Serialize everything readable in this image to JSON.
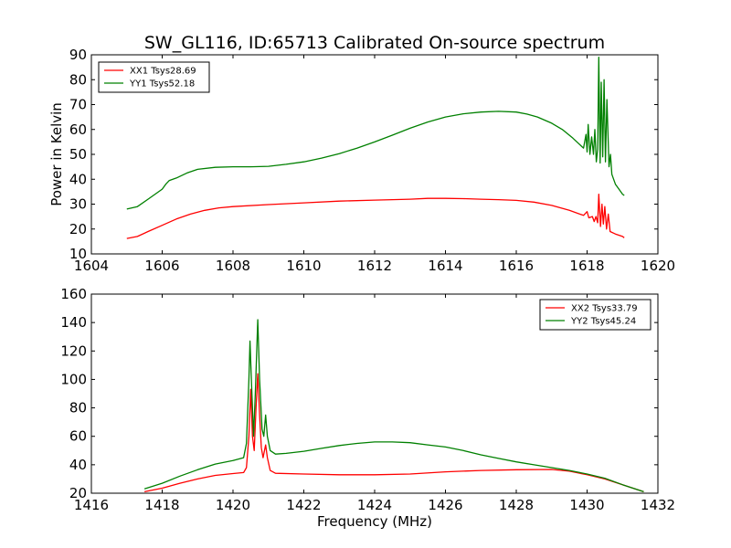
{
  "figure": {
    "title": "SW_GL116, ID:65713 Calibrated On-source spectrum",
    "xlabel": "Frequency (MHz)"
  },
  "chart_data": [
    {
      "type": "line",
      "title": "SW_GL116, ID:65713 Calibrated On-source spectrum",
      "xlabel": "",
      "ylabel": "Power in Kelvin",
      "xlim": [
        1604,
        1620
      ],
      "ylim": [
        10,
        90
      ],
      "xticks": [
        1604,
        1606,
        1608,
        1610,
        1612,
        1614,
        1616,
        1618,
        1620
      ],
      "yticks": [
        10,
        20,
        30,
        40,
        50,
        60,
        70,
        80,
        90
      ],
      "grid": false,
      "legend": "top-left",
      "series": [
        {
          "name": "XX1 Tsys28.69",
          "color": "#ff0000",
          "points": [
            [
              1605,
              16.2
            ],
            [
              1605.3,
              17
            ],
            [
              1605.6,
              19
            ],
            [
              1606,
              21.5
            ],
            [
              1606.4,
              24
            ],
            [
              1606.8,
              26
            ],
            [
              1607.2,
              27.5
            ],
            [
              1607.6,
              28.5
            ],
            [
              1608,
              29
            ],
            [
              1609,
              29.8
            ],
            [
              1610,
              30.5
            ],
            [
              1611,
              31.2
            ],
            [
              1612,
              31.6
            ],
            [
              1613,
              32
            ],
            [
              1613.5,
              32.3
            ],
            [
              1614,
              32.3
            ],
            [
              1614.5,
              32.2
            ],
            [
              1615,
              32
            ],
            [
              1615.5,
              31.8
            ],
            [
              1616,
              31.5
            ],
            [
              1616.5,
              30.8
            ],
            [
              1617,
              29.5
            ],
            [
              1617.5,
              27.5
            ],
            [
              1617.9,
              25.5
            ],
            [
              1618.0,
              27
            ],
            [
              1618.05,
              24.5
            ],
            [
              1618.15,
              25
            ],
            [
              1618.2,
              23
            ],
            [
              1618.25,
              25
            ],
            [
              1618.3,
              22.5
            ],
            [
              1618.33,
              34
            ],
            [
              1618.38,
              21
            ],
            [
              1618.42,
              30
            ],
            [
              1618.46,
              22
            ],
            [
              1618.5,
              29
            ],
            [
              1618.55,
              20
            ],
            [
              1618.6,
              26
            ],
            [
              1618.65,
              19
            ],
            [
              1618.8,
              18
            ],
            [
              1619.0,
              17
            ],
            [
              1619.05,
              16.5
            ]
          ]
        },
        {
          "name": "YY1 Tsys52.18",
          "color": "#008000",
          "points": [
            [
              1605,
              28
            ],
            [
              1605.3,
              29
            ],
            [
              1605.6,
              32
            ],
            [
              1606,
              36
            ],
            [
              1606.1,
              38
            ],
            [
              1606.2,
              39.5
            ],
            [
              1606.4,
              40.5
            ],
            [
              1606.7,
              42.5
            ],
            [
              1607,
              44
            ],
            [
              1607.5,
              44.8
            ],
            [
              1608,
              45
            ],
            [
              1608.5,
              45
            ],
            [
              1609,
              45.2
            ],
            [
              1609.5,
              46
            ],
            [
              1610,
              47
            ],
            [
              1610.5,
              48.5
            ],
            [
              1611,
              50.3
            ],
            [
              1611.5,
              52.5
            ],
            [
              1612,
              55
            ],
            [
              1612.5,
              57.7
            ],
            [
              1613,
              60.5
            ],
            [
              1613.5,
              63
            ],
            [
              1614,
              65
            ],
            [
              1614.5,
              66.3
            ],
            [
              1615,
              67
            ],
            [
              1615.5,
              67.3
            ],
            [
              1616,
              67
            ],
            [
              1616.3,
              66.2
            ],
            [
              1616.6,
              65
            ],
            [
              1617,
              62.5
            ],
            [
              1617.3,
              60
            ],
            [
              1617.6,
              56.5
            ],
            [
              1617.9,
              52.5
            ],
            [
              1617.97,
              58
            ],
            [
              1618.0,
              51
            ],
            [
              1618.03,
              62
            ],
            [
              1618.08,
              50
            ],
            [
              1618.13,
              57
            ],
            [
              1618.18,
              50
            ],
            [
              1618.22,
              60
            ],
            [
              1618.26,
              47
            ],
            [
              1618.3,
              52
            ],
            [
              1618.33,
              89
            ],
            [
              1618.37,
              46.5
            ],
            [
              1618.4,
              79
            ],
            [
              1618.44,
              49
            ],
            [
              1618.48,
              80
            ],
            [
              1618.52,
              47
            ],
            [
              1618.56,
              72
            ],
            [
              1618.62,
              45
            ],
            [
              1618.66,
              50
            ],
            [
              1618.7,
              42
            ],
            [
              1618.8,
              38
            ],
            [
              1618.9,
              36
            ],
            [
              1619.0,
              34
            ],
            [
              1619.05,
              33.5
            ]
          ]
        }
      ]
    },
    {
      "type": "line",
      "title": "",
      "xlabel": "Frequency (MHz)",
      "ylabel": "",
      "xlim": [
        1416,
        1432
      ],
      "ylim": [
        20,
        160
      ],
      "xticks": [
        1416,
        1418,
        1420,
        1422,
        1424,
        1426,
        1428,
        1430,
        1432
      ],
      "yticks": [
        20,
        40,
        60,
        80,
        100,
        120,
        140,
        160
      ],
      "grid": false,
      "legend": "top-right",
      "series": [
        {
          "name": "XX2 Tsys33.79",
          "color": "#ff0000",
          "points": [
            [
              1417.5,
              21
            ],
            [
              1418,
              23.5
            ],
            [
              1418.5,
              27
            ],
            [
              1419,
              30
            ],
            [
              1419.5,
              32.5
            ],
            [
              1420,
              33.8
            ],
            [
              1420.3,
              34.5
            ],
            [
              1420.38,
              38
            ],
            [
              1420.45,
              60
            ],
            [
              1420.5,
              93
            ],
            [
              1420.55,
              60
            ],
            [
              1420.6,
              50
            ],
            [
              1420.65,
              80
            ],
            [
              1420.7,
              104
            ],
            [
              1420.75,
              75
            ],
            [
              1420.8,
              52
            ],
            [
              1420.85,
              45
            ],
            [
              1420.92,
              54
            ],
            [
              1420.97,
              45
            ],
            [
              1421.05,
              36
            ],
            [
              1421.2,
              34
            ],
            [
              1422,
              33.5
            ],
            [
              1423,
              33
            ],
            [
              1424,
              33
            ],
            [
              1425,
              33.5
            ],
            [
              1426,
              35
            ],
            [
              1427,
              36
            ],
            [
              1428,
              36.5
            ],
            [
              1429,
              36.7
            ],
            [
              1429.5,
              35.5
            ],
            [
              1430,
              33
            ],
            [
              1430.5,
              30
            ],
            [
              1431,
              26
            ],
            [
              1431.6,
              21
            ]
          ]
        },
        {
          "name": "YY2 Tsys45.24",
          "color": "#008000",
          "points": [
            [
              1417.5,
              23
            ],
            [
              1418,
              27
            ],
            [
              1418.5,
              32
            ],
            [
              1419,
              36.5
            ],
            [
              1419.5,
              40.5
            ],
            [
              1420,
              43
            ],
            [
              1420.3,
              45
            ],
            [
              1420.38,
              55
            ],
            [
              1420.45,
              100
            ],
            [
              1420.48,
              127
            ],
            [
              1420.52,
              100
            ],
            [
              1420.58,
              60
            ],
            [
              1420.63,
              90
            ],
            [
              1420.7,
              142
            ],
            [
              1420.75,
              100
            ],
            [
              1420.82,
              65
            ],
            [
              1420.87,
              60
            ],
            [
              1420.92,
              75
            ],
            [
              1420.97,
              60
            ],
            [
              1421.05,
              50
            ],
            [
              1421.2,
              47.5
            ],
            [
              1421.5,
              48
            ],
            [
              1422,
              49.5
            ],
            [
              1422.5,
              51.5
            ],
            [
              1423,
              53.5
            ],
            [
              1423.5,
              55
            ],
            [
              1424,
              56
            ],
            [
              1424.5,
              56
            ],
            [
              1425,
              55.5
            ],
            [
              1425.5,
              54
            ],
            [
              1426,
              52.5
            ],
            [
              1426.5,
              50
            ],
            [
              1427,
              47
            ],
            [
              1427.5,
              44.5
            ],
            [
              1428,
              42
            ],
            [
              1428.5,
              40
            ],
            [
              1429,
              38
            ],
            [
              1429.5,
              36
            ],
            [
              1430,
              33.5
            ],
            [
              1430.5,
              30.5
            ],
            [
              1431,
              26
            ],
            [
              1431.6,
              21
            ]
          ]
        }
      ]
    }
  ]
}
